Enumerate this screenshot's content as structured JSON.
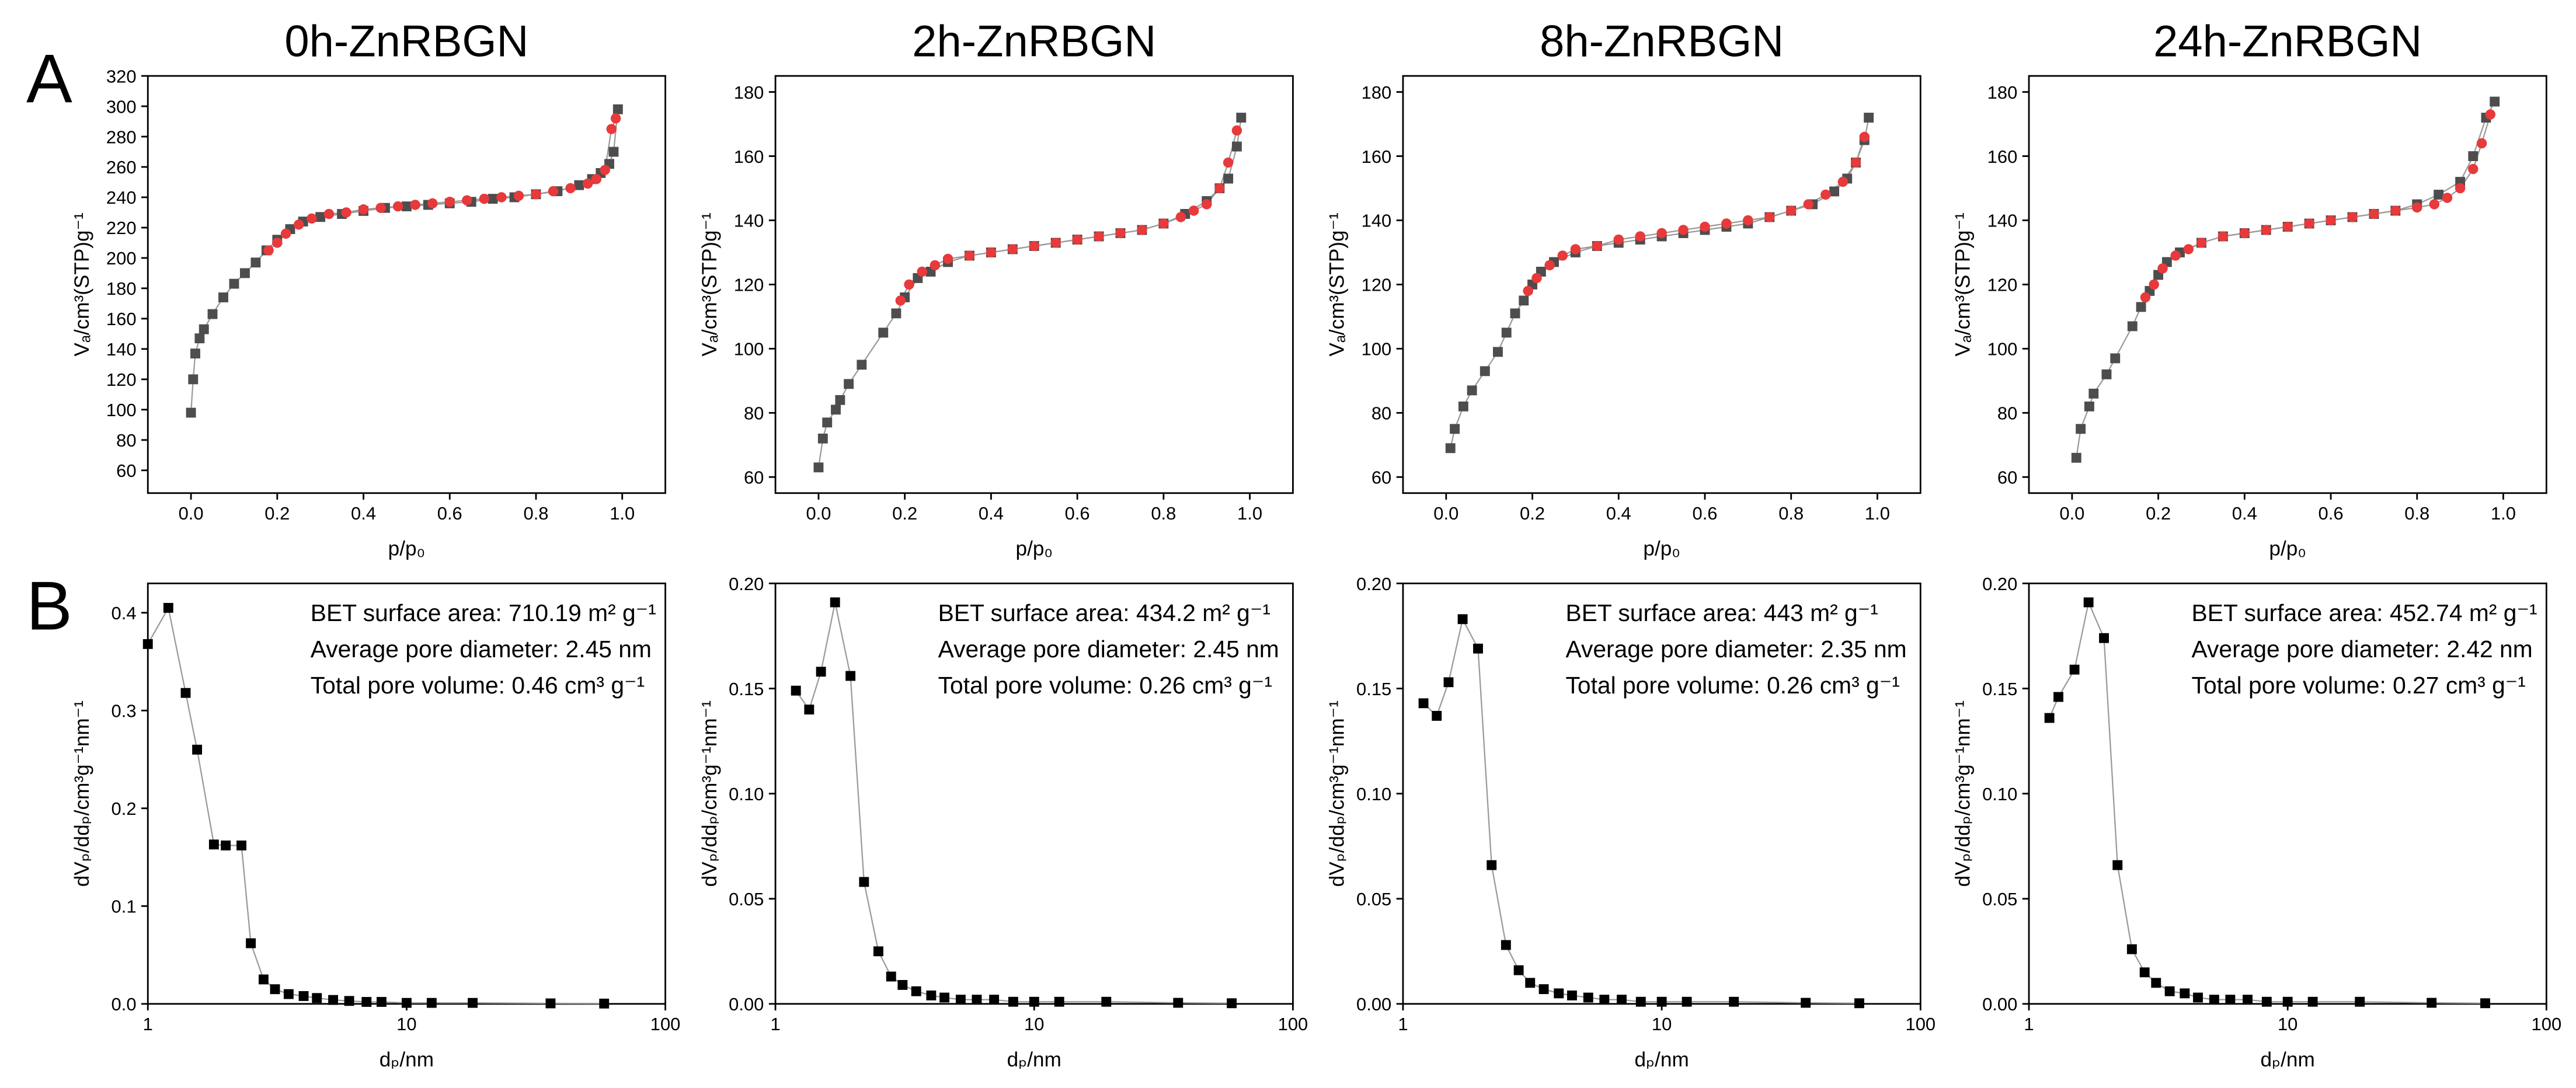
{
  "panel_labels": [
    "A",
    "B"
  ],
  "chart_data": [
    {
      "type": "line",
      "title": "0h-ZnRBGN",
      "xlabel": "p/p₀",
      "ylabel": "Vₐ/cm³(STP)g⁻¹",
      "xlim": [
        -0.1,
        1.1
      ],
      "ylim": [
        45,
        320
      ],
      "xticks": [
        {
          "value": 0,
          "label": "0.0"
        },
        {
          "value": 0.2,
          "label": "0.2"
        },
        {
          "value": 0.4,
          "label": "0.4"
        },
        {
          "value": 0.6,
          "label": "0.6"
        },
        {
          "value": 0.8,
          "label": "0.8"
        },
        {
          "value": 1,
          "label": "1.0"
        }
      ],
      "yticks": [
        60,
        80,
        100,
        120,
        140,
        160,
        180,
        200,
        220,
        240,
        260,
        280,
        300,
        320
      ],
      "line_color": "#9a9a9a",
      "series": [
        {
          "color": "#4d4d4d",
          "marker": "square",
          "x": [
            0.0,
            0.005,
            0.01,
            0.02,
            0.03,
            0.05,
            0.075,
            0.1,
            0.125,
            0.15,
            0.175,
            0.2,
            0.23,
            0.26,
            0.3,
            0.35,
            0.4,
            0.45,
            0.5,
            0.55,
            0.6,
            0.65,
            0.7,
            0.75,
            0.8,
            0.85,
            0.9,
            0.93,
            0.95,
            0.97,
            0.98,
            0.99
          ],
          "values": [
            98,
            120,
            137,
            147,
            153,
            163,
            174,
            183,
            190,
            197,
            205,
            212,
            219,
            224,
            227,
            229,
            231,
            233,
            234,
            235,
            236,
            237,
            239,
            240,
            242,
            244,
            248,
            252,
            256,
            262,
            270,
            298
          ]
        },
        {
          "color": "#e8393b",
          "marker": "circle",
          "x": [
            0.985,
            0.975,
            0.96,
            0.94,
            0.92,
            0.88,
            0.84,
            0.8,
            0.76,
            0.72,
            0.68,
            0.64,
            0.6,
            0.56,
            0.52,
            0.48,
            0.44,
            0.4,
            0.36,
            0.32,
            0.28,
            0.25,
            0.22,
            0.2,
            0.18
          ],
          "values": [
            292,
            285,
            258,
            252,
            249,
            246,
            244,
            242,
            241,
            240,
            239,
            238,
            237,
            236,
            235,
            234,
            233,
            232,
            230,
            229,
            226,
            222,
            216,
            210,
            205
          ]
        }
      ]
    },
    {
      "type": "line",
      "title": "2h-ZnRBGN",
      "xlabel": "p/p₀",
      "ylabel": "Vₐ/cm³(STP)g⁻¹",
      "xlim": [
        -0.1,
        1.1
      ],
      "ylim": [
        55,
        185
      ],
      "xticks": [
        {
          "value": 0,
          "label": "0.0"
        },
        {
          "value": 0.2,
          "label": "0.2"
        },
        {
          "value": 0.4,
          "label": "0.4"
        },
        {
          "value": 0.6,
          "label": "0.6"
        },
        {
          "value": 0.8,
          "label": "0.8"
        },
        {
          "value": 1,
          "label": "1.0"
        }
      ],
      "yticks": [
        60,
        80,
        100,
        120,
        140,
        160,
        180
      ],
      "line_color": "#9a9a9a",
      "series": [
        {
          "color": "#4d4d4d",
          "marker": "square",
          "x": [
            0.0,
            0.01,
            0.02,
            0.04,
            0.05,
            0.07,
            0.1,
            0.15,
            0.18,
            0.2,
            0.23,
            0.26,
            0.3,
            0.35,
            0.4,
            0.45,
            0.5,
            0.55,
            0.6,
            0.65,
            0.7,
            0.75,
            0.8,
            0.85,
            0.9,
            0.93,
            0.95,
            0.97,
            0.98
          ],
          "values": [
            63,
            72,
            77,
            81,
            84,
            89,
            95,
            105,
            111,
            116,
            122,
            124,
            127,
            129,
            130,
            131,
            132,
            133,
            134,
            135,
            136,
            137,
            139,
            142,
            146,
            150,
            153,
            163,
            172
          ]
        },
        {
          "color": "#e8393b",
          "marker": "circle",
          "x": [
            0.97,
            0.95,
            0.93,
            0.9,
            0.87,
            0.84,
            0.8,
            0.75,
            0.7,
            0.65,
            0.6,
            0.55,
            0.5,
            0.45,
            0.4,
            0.35,
            0.3,
            0.27,
            0.24,
            0.21,
            0.19
          ],
          "values": [
            168,
            158,
            150,
            145,
            143,
            141,
            139,
            137,
            136,
            135,
            134,
            133,
            132,
            131,
            130,
            129,
            128,
            126,
            124,
            120,
            115
          ]
        }
      ]
    },
    {
      "type": "line",
      "title": "8h-ZnRBGN",
      "xlabel": "p/p₀",
      "ylabel": "Vₐ/cm³(STP)g⁻¹",
      "xlim": [
        -0.1,
        1.1
      ],
      "ylim": [
        55,
        185
      ],
      "xticks": [
        {
          "value": 0,
          "label": "0.0"
        },
        {
          "value": 0.2,
          "label": "0.2"
        },
        {
          "value": 0.4,
          "label": "0.4"
        },
        {
          "value": 0.6,
          "label": "0.6"
        },
        {
          "value": 0.8,
          "label": "0.8"
        },
        {
          "value": 1,
          "label": "1.0"
        }
      ],
      "yticks": [
        60,
        80,
        100,
        120,
        140,
        160,
        180
      ],
      "line_color": "#9a9a9a",
      "series": [
        {
          "color": "#4d4d4d",
          "marker": "square",
          "x": [
            0.01,
            0.02,
            0.04,
            0.06,
            0.09,
            0.12,
            0.14,
            0.16,
            0.18,
            0.2,
            0.22,
            0.25,
            0.3,
            0.35,
            0.4,
            0.45,
            0.5,
            0.55,
            0.6,
            0.65,
            0.7,
            0.75,
            0.8,
            0.85,
            0.9,
            0.93,
            0.95,
            0.97,
            0.98
          ],
          "values": [
            69,
            75,
            82,
            87,
            93,
            99,
            105,
            111,
            115,
            120,
            124,
            127,
            130,
            132,
            133,
            134,
            135,
            136,
            137,
            138,
            139,
            141,
            143,
            145,
            149,
            153,
            158,
            165,
            172
          ]
        },
        {
          "color": "#e8393b",
          "marker": "circle",
          "x": [
            0.97,
            0.95,
            0.92,
            0.88,
            0.84,
            0.8,
            0.75,
            0.7,
            0.65,
            0.6,
            0.55,
            0.5,
            0.45,
            0.4,
            0.35,
            0.3,
            0.27,
            0.24,
            0.21,
            0.19
          ],
          "values": [
            166,
            158,
            152,
            148,
            145,
            143,
            141,
            140,
            139,
            138,
            137,
            136,
            135,
            134,
            132,
            131,
            129,
            126,
            122,
            118
          ]
        }
      ]
    },
    {
      "type": "line",
      "title": "24h-ZnRBGN",
      "xlabel": "p/p₀",
      "ylabel": "Vₐ/cm³(STP)g⁻¹",
      "xlim": [
        -0.1,
        1.1
      ],
      "ylim": [
        55,
        185
      ],
      "xticks": [
        {
          "value": 0,
          "label": "0.0"
        },
        {
          "value": 0.2,
          "label": "0.2"
        },
        {
          "value": 0.4,
          "label": "0.4"
        },
        {
          "value": 0.6,
          "label": "0.6"
        },
        {
          "value": 0.8,
          "label": "0.8"
        },
        {
          "value": 1,
          "label": "1.0"
        }
      ],
      "yticks": [
        60,
        80,
        100,
        120,
        140,
        160,
        180
      ],
      "line_color": "#9a9a9a",
      "series": [
        {
          "color": "#4d4d4d",
          "marker": "square",
          "x": [
            0.01,
            0.02,
            0.04,
            0.05,
            0.08,
            0.1,
            0.14,
            0.16,
            0.18,
            0.2,
            0.22,
            0.25,
            0.3,
            0.35,
            0.4,
            0.45,
            0.5,
            0.55,
            0.6,
            0.65,
            0.7,
            0.75,
            0.8,
            0.85,
            0.9,
            0.93,
            0.96,
            0.98
          ],
          "values": [
            66,
            75,
            82,
            86,
            92,
            97,
            107,
            113,
            118,
            123,
            127,
            130,
            133,
            135,
            136,
            137,
            138,
            139,
            140,
            141,
            142,
            143,
            145,
            148,
            152,
            160,
            172,
            177
          ]
        },
        {
          "color": "#e8393b",
          "marker": "circle",
          "x": [
            0.97,
            0.95,
            0.93,
            0.9,
            0.87,
            0.84,
            0.8,
            0.75,
            0.7,
            0.65,
            0.6,
            0.55,
            0.5,
            0.45,
            0.4,
            0.35,
            0.3,
            0.27,
            0.24,
            0.21,
            0.19,
            0.17
          ],
          "values": [
            173,
            164,
            156,
            150,
            147,
            145,
            144,
            143,
            142,
            141,
            140,
            139,
            138,
            137,
            136,
            135,
            133,
            131,
            129,
            125,
            120,
            116
          ]
        }
      ]
    },
    {
      "type": "line",
      "xscale": "log",
      "xlabel": "dₚ/nm",
      "ylabel": "dVₚ/ddₚ/cm³g⁻¹nm⁻¹",
      "xlim": [
        1,
        100
      ],
      "ylim": [
        0,
        0.43
      ],
      "xticks": [
        1,
        10,
        100
      ],
      "yticks": [
        {
          "value": 0,
          "label": "0.0"
        },
        0.1,
        0.2,
        0.3,
        0.4
      ],
      "line_color": "#9a9a9a",
      "annotations": [
        "BET surface area: 710.19 m² g⁻¹",
        "Average pore diameter: 2.45 nm",
        "Total pore volume: 0.46 cm³ g⁻¹"
      ],
      "series": [
        {
          "color": "#000000",
          "marker": "square",
          "x": [
            1.0,
            1.2,
            1.4,
            1.55,
            1.8,
            2.0,
            2.3,
            2.5,
            2.8,
            3.1,
            3.5,
            4.0,
            4.5,
            5.2,
            6,
            7,
            8,
            10,
            12.5,
            18,
            36,
            58
          ],
          "values": [
            0.368,
            0.405,
            0.318,
            0.26,
            0.163,
            0.162,
            0.162,
            0.062,
            0.025,
            0.015,
            0.01,
            0.008,
            0.006,
            0.004,
            0.003,
            0.002,
            0.002,
            0.001,
            0.001,
            0.001,
            0.0005,
            0.0003
          ]
        }
      ]
    },
    {
      "type": "line",
      "xscale": "log",
      "xlabel": "dₚ/nm",
      "ylabel": "dVₚ/ddₚ/cm³g⁻¹nm⁻¹",
      "xlim": [
        1,
        100
      ],
      "ylim": [
        0,
        0.2
      ],
      "xticks": [
        1,
        10,
        100
      ],
      "yticks": [
        {
          "value": 0,
          "label": "0.00"
        },
        0.05,
        {
          "value": 0.1,
          "label": "0.10"
        },
        0.15,
        {
          "value": 0.2,
          "label": "0.20"
        }
      ],
      "line_color": "#9a9a9a",
      "annotations": [
        "BET surface area: 434.2 m² g⁻¹",
        "Average pore diameter: 2.45 nm",
        "Total pore volume: 0.26 cm³ g⁻¹"
      ],
      "series": [
        {
          "color": "#000000",
          "marker": "square",
          "x": [
            1.2,
            1.35,
            1.5,
            1.7,
            1.95,
            2.2,
            2.5,
            2.8,
            3.1,
            3.5,
            4,
            4.5,
            5.2,
            6,
            7,
            8.3,
            10,
            12.5,
            19,
            36,
            58
          ],
          "values": [
            0.149,
            0.14,
            0.158,
            0.191,
            0.156,
            0.058,
            0.025,
            0.013,
            0.009,
            0.006,
            0.004,
            0.003,
            0.002,
            0.002,
            0.002,
            0.001,
            0.001,
            0.001,
            0.001,
            0.0005,
            0.0003
          ]
        }
      ]
    },
    {
      "type": "line",
      "xscale": "log",
      "xlabel": "dₚ/nm",
      "ylabel": "dVₚ/ddₚ/cm³g⁻¹nm⁻¹",
      "xlim": [
        1,
        100
      ],
      "ylim": [
        0,
        0.2
      ],
      "xticks": [
        1,
        10,
        100
      ],
      "yticks": [
        {
          "value": 0,
          "label": "0.00"
        },
        0.05,
        {
          "value": 0.1,
          "label": "0.10"
        },
        0.15,
        {
          "value": 0.2,
          "label": "0.20"
        }
      ],
      "line_color": "#9a9a9a",
      "annotations": [
        "BET surface area: 443 m² g⁻¹",
        "Average pore diameter: 2.35 nm",
        "Total pore volume: 0.26 cm³ g⁻¹"
      ],
      "series": [
        {
          "color": "#000000",
          "marker": "square",
          "x": [
            1.2,
            1.35,
            1.5,
            1.7,
            1.95,
            2.2,
            2.5,
            2.8,
            3.1,
            3.5,
            4,
            4.5,
            5.2,
            6,
            7,
            8.3,
            10,
            12.5,
            19,
            36,
            58
          ],
          "values": [
            0.143,
            0.137,
            0.153,
            0.183,
            0.169,
            0.066,
            0.028,
            0.016,
            0.01,
            0.007,
            0.005,
            0.004,
            0.003,
            0.002,
            0.002,
            0.001,
            0.001,
            0.001,
            0.001,
            0.0005,
            0.0003
          ]
        }
      ]
    },
    {
      "type": "line",
      "xscale": "log",
      "xlabel": "dₚ/nm",
      "ylabel": "dVₚ/ddₚ/cm³g⁻¹nm⁻¹",
      "xlim": [
        1,
        100
      ],
      "ylim": [
        0,
        0.2
      ],
      "xticks": [
        1,
        10,
        100
      ],
      "yticks": [
        {
          "value": 0,
          "label": "0.00"
        },
        0.05,
        {
          "value": 0.1,
          "label": "0.10"
        },
        0.15,
        {
          "value": 0.2,
          "label": "0.20"
        }
      ],
      "line_color": "#9a9a9a",
      "annotations": [
        "BET surface area: 452.74 m² g⁻¹",
        "Average pore diameter: 2.42 nm",
        "Total pore volume: 0.27 cm³ g⁻¹"
      ],
      "series": [
        {
          "color": "#000000",
          "marker": "square",
          "x": [
            1.2,
            1.3,
            1.5,
            1.7,
            1.95,
            2.2,
            2.5,
            2.8,
            3.1,
            3.5,
            4,
            4.5,
            5.2,
            6,
            7,
            8.3,
            10,
            12.5,
            19,
            36,
            58
          ],
          "values": [
            0.136,
            0.146,
            0.159,
            0.191,
            0.174,
            0.066,
            0.026,
            0.015,
            0.01,
            0.006,
            0.005,
            0.003,
            0.002,
            0.002,
            0.002,
            0.001,
            0.001,
            0.001,
            0.001,
            0.0005,
            0.0003
          ]
        }
      ]
    }
  ]
}
